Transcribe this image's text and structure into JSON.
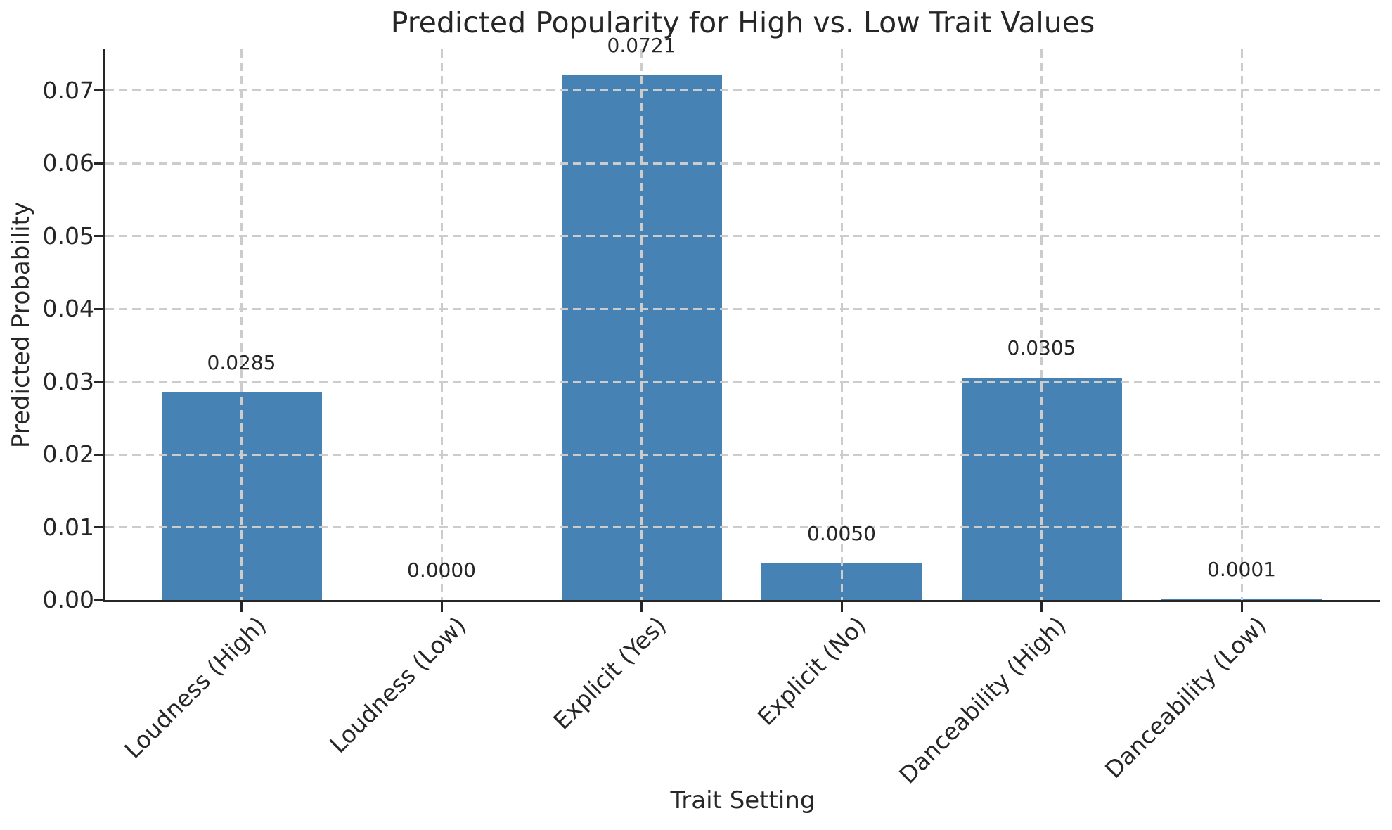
{
  "chart_data": {
    "type": "bar",
    "title": "Predicted Popularity for High vs. Low Trait Values",
    "xlabel": "Trait Setting",
    "ylabel": "Predicted Probability",
    "categories": [
      "Loudness (High)",
      "Loudness (Low)",
      "Explicit (Yes)",
      "Explicit (No)",
      "Danceability (High)",
      "Danceability (Low)"
    ],
    "values": [
      0.0285,
      0.0,
      0.0721,
      0.005,
      0.0305,
      0.0001
    ],
    "bar_value_labels": [
      "0.0285",
      "0.0000",
      "0.0721",
      "0.0050",
      "0.0305",
      "0.0001"
    ],
    "ytick_values": [
      0.0,
      0.01,
      0.02,
      0.03,
      0.04,
      0.05,
      0.06,
      0.07
    ],
    "ytick_labels": [
      "0.00",
      "0.01",
      "0.02",
      "0.03",
      "0.04",
      "0.05",
      "0.06",
      "0.07"
    ],
    "ylim": [
      0,
      0.0757
    ],
    "xtick_rotation_deg": 45,
    "grid": "dashed, drawn over bars",
    "legend": "none",
    "bar_color": "#4682b4",
    "grid_color": "#cccccc",
    "axis_color": "#262626",
    "text_color": "#262626",
    "background_color": "#ffffff"
  }
}
